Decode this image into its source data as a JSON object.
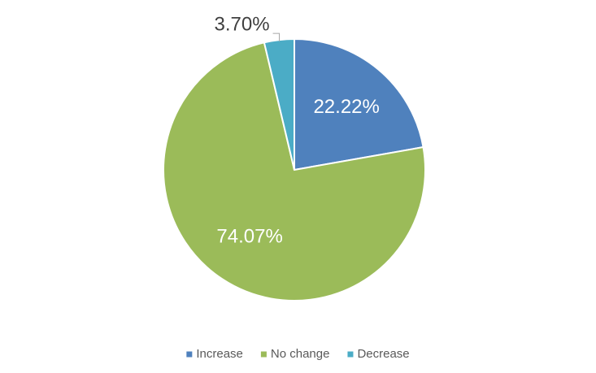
{
  "chart_data": {
    "type": "pie",
    "categories": [
      "Increase",
      "No change",
      "Decrease"
    ],
    "values": [
      22.22,
      74.07,
      3.7
    ],
    "value_labels": [
      "22.22%",
      "74.07%",
      "3.70%"
    ],
    "colors": [
      "#4f81bd",
      "#9bbb59",
      "#4bacc6"
    ],
    "legend": "bottom"
  }
}
